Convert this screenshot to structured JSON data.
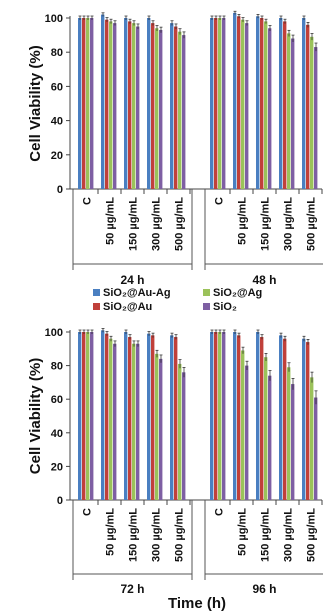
{
  "chart_data": [
    {
      "type": "bar",
      "panel": "top",
      "ylabel": "Cell Viability (%)",
      "ylim": [
        0,
        100
      ],
      "yticks": [
        0,
        20,
        40,
        60,
        80,
        100
      ],
      "categories": [
        "C",
        "50 µg/mL",
        "150 µg/mL",
        "300 µg/mL",
        "500 µg/mL"
      ],
      "groups": [
        "24 h",
        "48 h"
      ],
      "series": [
        {
          "name": "SiO₂@Au-Ag",
          "values": [
            [
              100,
              102,
              100,
              100,
              97
            ],
            [
              100,
              103,
              101,
              100,
              100
            ]
          ]
        },
        {
          "name": "SiO₂@Au",
          "values": [
            [
              100,
              99,
              98,
              97,
              95
            ],
            [
              100,
              101,
              100,
              98,
              96
            ]
          ]
        },
        {
          "name": "SiO₂@Ag",
          "values": [
            [
              100,
              98,
              97,
              94,
              92
            ],
            [
              100,
              99,
              98,
              91,
              89
            ]
          ]
        },
        {
          "name": "SiO₂",
          "values": [
            [
              100,
              97,
              95,
              93,
              90
            ],
            [
              100,
              97,
              94,
              88,
              83
            ]
          ]
        }
      ]
    },
    {
      "type": "bar",
      "panel": "bottom",
      "ylabel": "Cell Viability (%)",
      "xlabel": "Time (h)",
      "ylim": [
        0,
        100
      ],
      "yticks": [
        0,
        20,
        40,
        60,
        80,
        100
      ],
      "categories": [
        "C",
        "50 µg/mL",
        "150 µg/mL",
        "300 µg/mL",
        "500 µg/mL"
      ],
      "groups": [
        "72 h",
        "96 h"
      ],
      "series": [
        {
          "name": "SiO₂@Au-Ag",
          "values": [
            [
              100,
              101,
              100,
              99,
              98
            ],
            [
              100,
              100,
              100,
              98,
              96
            ]
          ]
        },
        {
          "name": "SiO₂@Au",
          "values": [
            [
              100,
              99,
              97,
              98,
              97
            ],
            [
              100,
              98,
              97,
              96,
              94
            ]
          ]
        },
        {
          "name": "SiO₂@Ag",
          "values": [
            [
              100,
              96,
              93,
              87,
              81
            ],
            [
              100,
              89,
              85,
              79,
              73
            ]
          ]
        },
        {
          "name": "SiO₂",
          "values": [
            [
              100,
              93,
              93,
              84,
              76
            ],
            [
              100,
              80,
              74,
              69,
              61
            ]
          ]
        }
      ]
    }
  ],
  "legend": {
    "items": [
      {
        "label": "SiO₂@Au-Ag",
        "color": "#4a7fc1"
      },
      {
        "label": "SiO₂@Ag",
        "color": "#9bc25a"
      },
      {
        "label": "SiO₂@Au",
        "color": "#c0403a"
      },
      {
        "label": "SiO₂",
        "color": "#7e5fa3"
      }
    ]
  }
}
